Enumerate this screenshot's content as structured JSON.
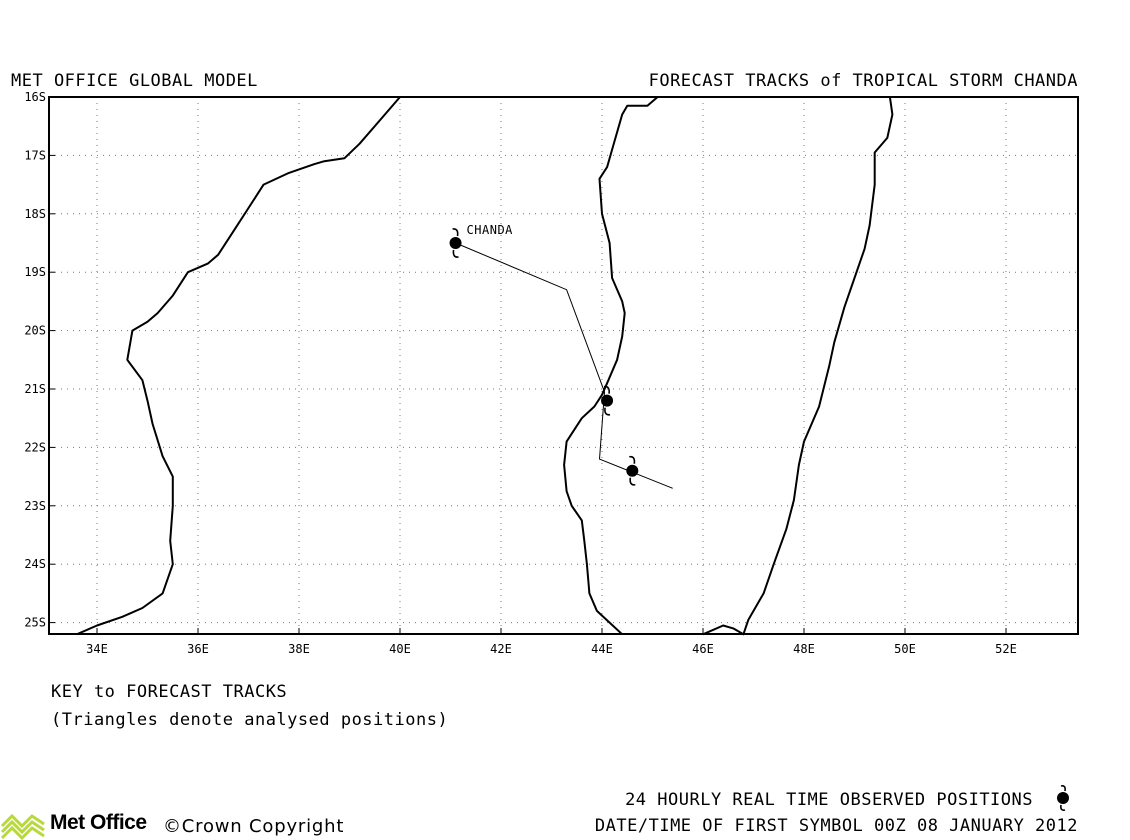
{
  "header": {
    "left_title": "MET OFFICE GLOBAL MODEL",
    "right_title": "FORECAST TRACKS of TROPICAL STORM CHANDA"
  },
  "map": {
    "lon_range": [
      33,
      53.5
    ],
    "lat_range": [
      -16,
      -25.2
    ],
    "lon_ticks": [
      {
        "value": 34,
        "label": "34E"
      },
      {
        "value": 36,
        "label": "36E"
      },
      {
        "value": 38,
        "label": "38E"
      },
      {
        "value": 40,
        "label": "40E"
      },
      {
        "value": 42,
        "label": "42E"
      },
      {
        "value": 44,
        "label": "44E"
      },
      {
        "value": 46,
        "label": "46E"
      },
      {
        "value": 48,
        "label": "48E"
      },
      {
        "value": 50,
        "label": "50E"
      },
      {
        "value": 52,
        "label": "52E"
      }
    ],
    "lat_ticks": [
      {
        "value": -16,
        "label": "16S"
      },
      {
        "value": -17,
        "label": "17S"
      },
      {
        "value": -18,
        "label": "18S"
      },
      {
        "value": -19,
        "label": "19S"
      },
      {
        "value": -20,
        "label": "20S"
      },
      {
        "value": -21,
        "label": "21S"
      },
      {
        "value": -22,
        "label": "22S"
      },
      {
        "value": -23,
        "label": "23S"
      },
      {
        "value": -24,
        "label": "24S"
      },
      {
        "value": -25,
        "label": "25S"
      }
    ],
    "grid": "dotted",
    "coastlines": [
      {
        "name": "africa",
        "points": [
          [
            40.0,
            -16.0
          ],
          [
            39.6,
            -16.4
          ],
          [
            39.2,
            -16.8
          ],
          [
            38.9,
            -17.05
          ],
          [
            38.5,
            -17.1
          ],
          [
            38.3,
            -17.15
          ],
          [
            37.8,
            -17.3
          ],
          [
            37.3,
            -17.5
          ],
          [
            37.0,
            -17.9
          ],
          [
            36.7,
            -18.3
          ],
          [
            36.4,
            -18.7
          ],
          [
            36.2,
            -18.85
          ],
          [
            35.8,
            -19.0
          ],
          [
            35.5,
            -19.4
          ],
          [
            35.2,
            -19.7
          ],
          [
            35.0,
            -19.85
          ],
          [
            34.7,
            -20.0
          ],
          [
            34.6,
            -20.5
          ],
          [
            34.9,
            -20.85
          ],
          [
            35.0,
            -21.2
          ],
          [
            35.1,
            -21.6
          ],
          [
            35.3,
            -22.15
          ],
          [
            35.5,
            -22.5
          ],
          [
            35.5,
            -23.0
          ],
          [
            35.45,
            -23.6
          ],
          [
            35.5,
            -24.0
          ],
          [
            35.3,
            -24.5
          ],
          [
            34.9,
            -24.75
          ],
          [
            34.5,
            -24.9
          ],
          [
            34.0,
            -25.05
          ],
          [
            33.6,
            -25.2
          ]
        ]
      },
      {
        "name": "madagascar-west",
        "points": [
          [
            45.1,
            -16.0
          ],
          [
            44.9,
            -16.15
          ],
          [
            44.5,
            -16.15
          ],
          [
            44.4,
            -16.3
          ],
          [
            44.2,
            -16.9
          ],
          [
            44.1,
            -17.2
          ],
          [
            43.95,
            -17.4
          ],
          [
            44.0,
            -18.0
          ],
          [
            44.15,
            -18.5
          ],
          [
            44.2,
            -19.1
          ],
          [
            44.4,
            -19.5
          ],
          [
            44.45,
            -19.7
          ],
          [
            44.4,
            -20.1
          ],
          [
            44.3,
            -20.5
          ],
          [
            44.1,
            -20.9
          ],
          [
            44.0,
            -21.1
          ],
          [
            43.85,
            -21.3
          ],
          [
            43.6,
            -21.5
          ],
          [
            43.3,
            -21.9
          ],
          [
            43.25,
            -22.3
          ],
          [
            43.3,
            -22.75
          ],
          [
            43.4,
            -23.0
          ],
          [
            43.6,
            -23.25
          ],
          [
            43.65,
            -23.6
          ],
          [
            43.7,
            -24.0
          ],
          [
            43.75,
            -24.5
          ],
          [
            43.9,
            -24.8
          ],
          [
            44.15,
            -25.0
          ],
          [
            44.4,
            -25.2
          ]
        ]
      },
      {
        "name": "madagascar-east",
        "points": [
          [
            49.7,
            -16.0
          ],
          [
            49.75,
            -16.3
          ],
          [
            49.65,
            -16.7
          ],
          [
            49.4,
            -16.95
          ],
          [
            49.4,
            -17.5
          ],
          [
            49.3,
            -18.2
          ],
          [
            49.2,
            -18.6
          ],
          [
            49.0,
            -19.1
          ],
          [
            48.8,
            -19.6
          ],
          [
            48.6,
            -20.2
          ],
          [
            48.5,
            -20.6
          ],
          [
            48.3,
            -21.3
          ],
          [
            48.0,
            -21.9
          ],
          [
            47.9,
            -22.3
          ],
          [
            47.8,
            -22.9
          ],
          [
            47.65,
            -23.4
          ],
          [
            47.4,
            -24.0
          ],
          [
            47.2,
            -24.5
          ],
          [
            46.9,
            -24.95
          ],
          [
            46.8,
            -25.2
          ],
          [
            46.6,
            -25.1
          ],
          [
            46.4,
            -25.05
          ],
          [
            46.0,
            -25.2
          ]
        ]
      }
    ],
    "storm": {
      "name": "CHANDA",
      "track": [
        [
          41.1,
          -18.5
        ],
        [
          43.3,
          -19.3
        ],
        [
          44.05,
          -21.05
        ],
        [
          43.95,
          -22.2
        ],
        [
          45.4,
          -22.7
        ]
      ],
      "symbols": [
        [
          41.1,
          -18.5
        ],
        [
          44.1,
          -21.2
        ],
        [
          44.6,
          -22.4
        ]
      ]
    }
  },
  "key": {
    "title": "KEY to FORECAST TRACKS",
    "note": "(Triangles denote analysed positions)"
  },
  "footer": {
    "brand": "Met Office",
    "copyright": "©Crown Copyright",
    "observed_label": "24 HOURLY REAL TIME OBSERVED POSITIONS",
    "first_symbol": "DATE/TIME OF FIRST SYMBOL 00Z 08 JANUARY 2012"
  }
}
